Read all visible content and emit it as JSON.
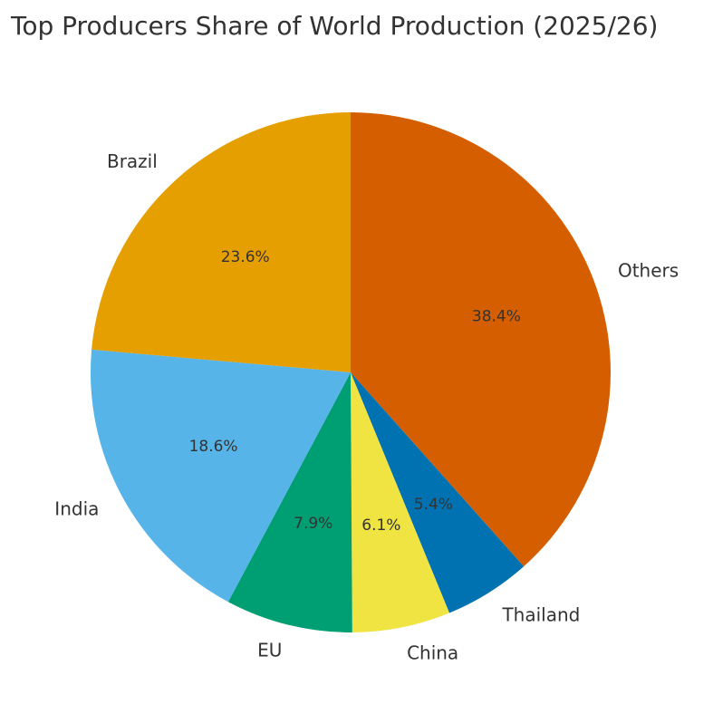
{
  "chart_data": {
    "type": "pie",
    "title": "Top Producers Share of World Production (2025/26)",
    "start_angle_deg": 90,
    "direction": "clockwise",
    "slices": [
      {
        "label": "Others",
        "value": 38.4,
        "pct_label": "38.4%",
        "color": "#D55E00"
      },
      {
        "label": "Thailand",
        "value": 5.4,
        "pct_label": "5.4%",
        "color": "#0072B2"
      },
      {
        "label": "China",
        "value": 6.1,
        "pct_label": "6.1%",
        "color": "#F0E442"
      },
      {
        "label": "EU",
        "value": 7.9,
        "pct_label": "7.9%",
        "color": "#009E73"
      },
      {
        "label": "India",
        "value": 18.6,
        "pct_label": "18.6%",
        "color": "#56B4E9"
      },
      {
        "label": "Brazil",
        "value": 23.6,
        "pct_label": "23.6%",
        "color": "#E69F00"
      }
    ]
  }
}
